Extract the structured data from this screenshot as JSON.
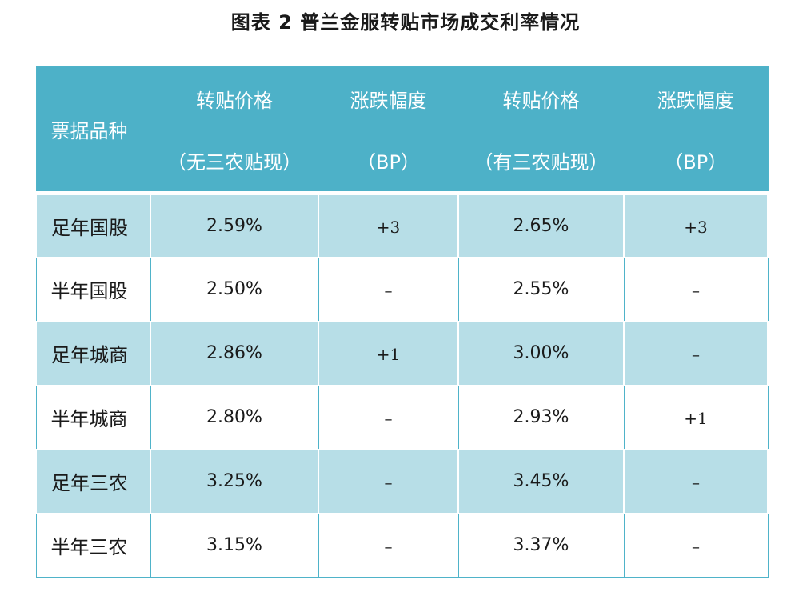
{
  "title": "图表 2  普兰金服转贴市场成交利率情况",
  "header": {
    "col0": "票据品种",
    "col1_line1": "转贴价格",
    "col1_line2": "（无三农贴现）",
    "col2_line1": "涨跌幅度",
    "col2_line2": "（BP）",
    "col3_line1": "转贴价格",
    "col3_line2": "（有三农贴现）",
    "col4_line1": "涨跌幅度",
    "col4_line2": "（BP）"
  },
  "rows": [
    {
      "name": "足年国股",
      "price_a": "2.59%",
      "chg_a": "+3",
      "price_b": "2.65%",
      "chg_b": "+3"
    },
    {
      "name": "半年国股",
      "price_a": "2.50%",
      "chg_a": "–",
      "price_b": "2.55%",
      "chg_b": "–"
    },
    {
      "name": "足年城商",
      "price_a": "2.86%",
      "chg_a": "+1",
      "price_b": "3.00%",
      "chg_b": "–"
    },
    {
      "name": "半年城商",
      "price_a": "2.80%",
      "chg_a": "–",
      "price_b": "2.93%",
      "chg_b": "+1"
    },
    {
      "name": "足年三农",
      "price_a": "3.25%",
      "chg_a": "–",
      "price_b": "3.45%",
      "chg_b": "–"
    },
    {
      "name": "半年三农",
      "price_a": "3.15%",
      "chg_a": "–",
      "price_b": "3.37%",
      "chg_b": "–"
    }
  ],
  "colors": {
    "header_bg": "#4db1c8",
    "shade_row": "#b7dee7"
  }
}
